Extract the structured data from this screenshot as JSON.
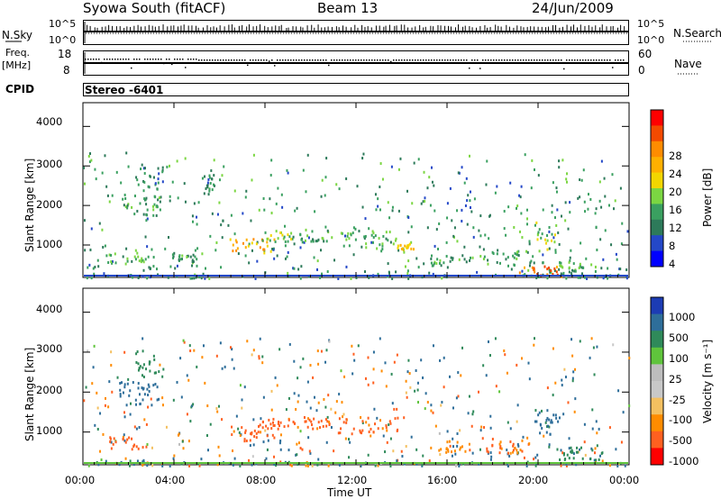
{
  "header": {
    "station": "Syowa South (fitACF)",
    "beam": "Beam 13",
    "date": "24/Jun/2009"
  },
  "top_panels": {
    "nsky_label": "N.Sky",
    "nsearch_label": "N.Search",
    "nsky_ticks": [
      "10^5",
      "10^0"
    ],
    "nsearch_ticks": [
      "10^5",
      "10^0"
    ],
    "freq_label": "Freq.",
    "freq_unit": "[MHz]",
    "freq_ticks": [
      "18",
      "8"
    ],
    "nave_label": "Nave",
    "nave_ticks": [
      "60",
      "0"
    ],
    "cpid_label": "CPID",
    "cpid_value": "Stereo  -6401"
  },
  "axes": {
    "ylabel": "Slant Range [km]",
    "yticks": [
      "4000",
      "3000",
      "2000",
      "1000"
    ],
    "xticks": [
      "00:00",
      "04:00",
      "08:00",
      "12:00",
      "16:00",
      "20:00",
      "00:00"
    ],
    "xlabel": "Time UT"
  },
  "colorbars": {
    "power": {
      "label": "Power [dB]",
      "ticks": [
        "28",
        "24",
        "20",
        "16",
        "12",
        "8",
        "4"
      ],
      "colors": [
        "#ff0000",
        "#f44a00",
        "#ff8c00",
        "#ffb000",
        "#f2d600",
        "#7bd642",
        "#3aa060",
        "#2d7a5a",
        "#2448c8",
        "#0000ff"
      ]
    },
    "velocity": {
      "label": "Velocity [m s⁻¹]",
      "ticks": [
        "1000",
        "500",
        "100",
        "25",
        "-25",
        "-100",
        "-500",
        "-1000"
      ],
      "colors": [
        "#1c3cb4",
        "#2e6e9a",
        "#2f8a5a",
        "#5fc43c",
        "#bdbdbd",
        "#c8c8c8",
        "#f4c060",
        "#ff8c00",
        "#ff6020",
        "#ff0000"
      ]
    }
  },
  "chart_data": [
    {
      "type": "heatmap",
      "title": "Power [dB]",
      "xlabel": "Time UT",
      "ylabel": "Slant Range [km]",
      "xlim": [
        0,
        24
      ],
      "ylim": [
        180,
        4600
      ],
      "clim": [
        0,
        32
      ],
      "clusters": [
        {
          "t": [
            2.3,
            3.5
          ],
          "r": [
            2400,
            3100
          ],
          "level": 8
        },
        {
          "t": [
            1.5,
            3.4
          ],
          "r": [
            1700,
            2300
          ],
          "level": 10
        },
        {
          "t": [
            1.0,
            2.8
          ],
          "r": [
            600,
            900
          ],
          "level": 12
        },
        {
          "t": [
            3.8,
            5.0
          ],
          "r": [
            600,
            800
          ],
          "level": 10
        },
        {
          "t": [
            5.2,
            5.8
          ],
          "r": [
            2300,
            2800
          ],
          "level": 8
        },
        {
          "t": [
            6.4,
            8.4
          ],
          "r": [
            800,
            1200
          ],
          "level": 22
        },
        {
          "t": [
            7.6,
            9.3
          ],
          "r": [
            1100,
            1400
          ],
          "level": 14
        },
        {
          "t": [
            9.4,
            10.8
          ],
          "r": [
            1100,
            1400
          ],
          "level": 10
        },
        {
          "t": [
            11.2,
            13.8
          ],
          "r": [
            1000,
            1400
          ],
          "level": 12
        },
        {
          "t": [
            13.8,
            14.6
          ],
          "r": [
            900,
            1100
          ],
          "level": 18
        },
        {
          "t": [
            15.2,
            17.0
          ],
          "r": [
            500,
            800
          ],
          "level": 10
        },
        {
          "t": [
            17.5,
            19.8
          ],
          "r": [
            500,
            900
          ],
          "level": 10
        },
        {
          "t": [
            19.0,
            21.0
          ],
          "r": [
            200,
            500
          ],
          "level": 26
        },
        {
          "t": [
            19.8,
            20.8
          ],
          "r": [
            900,
            1600
          ],
          "level": 14
        },
        {
          "t": [
            20.8,
            22.8
          ],
          "r": [
            300,
            700
          ],
          "level": 12
        }
      ]
    },
    {
      "type": "heatmap",
      "title": "Velocity [m s-1]",
      "xlabel": "Time UT",
      "ylabel": "Slant Range [km]",
      "xlim": [
        0,
        24
      ],
      "ylim": [
        180,
        4600
      ],
      "clim": [
        -1000,
        1000
      ],
      "clusters": [
        {
          "t": [
            2.3,
            3.5
          ],
          "r": [
            2400,
            3100
          ],
          "level": 50
        },
        {
          "t": [
            1.5,
            3.4
          ],
          "r": [
            1700,
            2300
          ],
          "level": 200
        },
        {
          "t": [
            1.0,
            2.8
          ],
          "r": [
            600,
            900
          ],
          "level": -200
        },
        {
          "t": [
            6.4,
            8.4
          ],
          "r": [
            800,
            1200
          ],
          "level": -150
        },
        {
          "t": [
            7.6,
            9.3
          ],
          "r": [
            1100,
            1400
          ],
          "level": -200
        },
        {
          "t": [
            9.4,
            10.8
          ],
          "r": [
            1100,
            1400
          ],
          "level": -150
        },
        {
          "t": [
            11.2,
            13.8
          ],
          "r": [
            1000,
            1400
          ],
          "level": -120
        },
        {
          "t": [
            15.2,
            17.0
          ],
          "r": [
            500,
            800
          ],
          "level": -80
        },
        {
          "t": [
            17.5,
            19.8
          ],
          "r": [
            500,
            900
          ],
          "level": -100
        },
        {
          "t": [
            19.8,
            20.8
          ],
          "r": [
            900,
            1600
          ],
          "level": 150
        },
        {
          "t": [
            20.8,
            22.8
          ],
          "r": [
            300,
            700
          ],
          "level": 60
        }
      ]
    }
  ]
}
